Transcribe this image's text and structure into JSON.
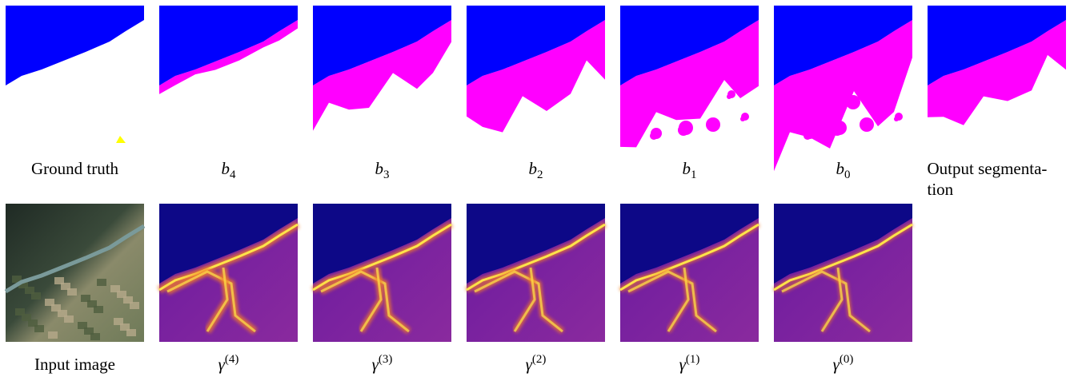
{
  "top_row": [
    {
      "caption": "Ground truth"
    },
    {
      "caption": {
        "base": "b",
        "sub": "4"
      }
    },
    {
      "caption": {
        "base": "b",
        "sub": "3"
      }
    },
    {
      "caption": {
        "base": "b",
        "sub": "2"
      }
    },
    {
      "caption": {
        "base": "b",
        "sub": "1"
      }
    },
    {
      "caption": {
        "base": "b",
        "sub": "0"
      }
    },
    {
      "caption": [
        "Output segmenta-",
        "tion"
      ]
    }
  ],
  "bottom_row": [
    {
      "caption": "Input image"
    },
    {
      "caption": {
        "base": "γ",
        "sup": "(4)"
      }
    },
    {
      "caption": {
        "base": "γ",
        "sup": "(3)"
      }
    },
    {
      "caption": {
        "base": "γ",
        "sup": "(2)"
      }
    },
    {
      "caption": {
        "base": "γ",
        "sup": "(1)"
      }
    },
    {
      "caption": {
        "base": "γ",
        "sup": "(0)"
      }
    }
  ]
}
